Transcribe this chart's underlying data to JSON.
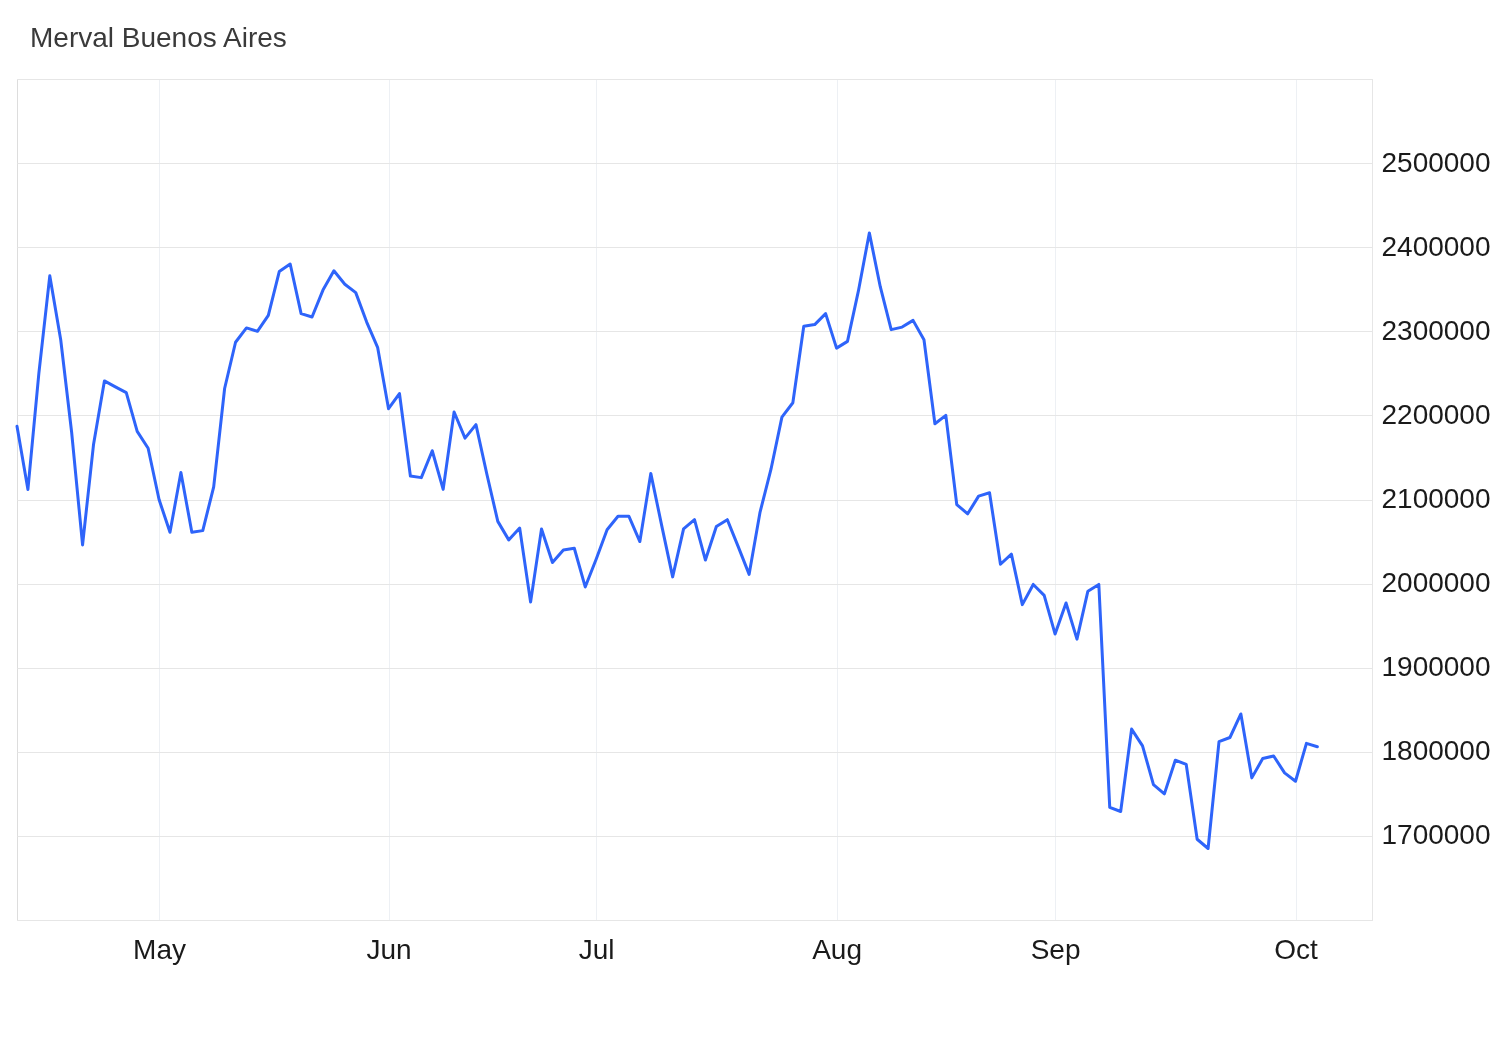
{
  "chart_data": {
    "type": "line",
    "title": "Merval Buenos Aires",
    "categories": [
      null,
      null,
      null,
      null,
      null,
      null,
      null,
      null,
      null,
      null,
      null,
      null,
      null,
      "May",
      null,
      null,
      null,
      null,
      null,
      null,
      null,
      null,
      null,
      null,
      null,
      null,
      null,
      null,
      null,
      null,
      null,
      null,
      null,
      null,
      "Jun",
      null,
      null,
      null,
      null,
      null,
      null,
      null,
      null,
      null,
      null,
      null,
      null,
      null,
      null,
      null,
      null,
      null,
      null,
      "Jul",
      null,
      null,
      null,
      null,
      null,
      null,
      null,
      null,
      null,
      null,
      null,
      null,
      null,
      null,
      null,
      null,
      null,
      null,
      null,
      null,
      null,
      "Aug",
      null,
      null,
      null,
      null,
      null,
      null,
      null,
      null,
      null,
      null,
      null,
      null,
      null,
      null,
      null,
      null,
      null,
      null,
      null,
      "Sep",
      null,
      null,
      null,
      null,
      null,
      null,
      null,
      null,
      null,
      null,
      null,
      null,
      null,
      null,
      null,
      null,
      null,
      null,
      null,
      null,
      null,
      "Oct",
      null,
      null
    ],
    "series": [
      {
        "color": "#2e64fa",
        "values": [
          2187000,
          2112000,
          2250000,
          2366000,
          2290000,
          2180000,
          2046000,
          2165000,
          2241000,
          2234000,
          2227000,
          2181000,
          2161000,
          2100000,
          2061000,
          2132000,
          2061000,
          2063000,
          2115000,
          2232000,
          2287000,
          2304000,
          2300000,
          2319000,
          2371000,
          2380000,
          2321000,
          2317000,
          2349000,
          2372000,
          2356000,
          2346000,
          2311000,
          2281000,
          2208000,
          2226000,
          2128000,
          2126000,
          2158000,
          2112000,
          2204000,
          2173000,
          2189000,
          2130000,
          2074000,
          2052000,
          2066000,
          1978000,
          2065000,
          2025000,
          2040000,
          2042000,
          1996000,
          2029000,
          2064000,
          2080000,
          2080000,
          2050000,
          2131000,
          2069000,
          2008000,
          2065000,
          2076000,
          2028000,
          2068000,
          2076000,
          2044000,
          2011000,
          2085000,
          2136000,
          2198000,
          2215000,
          2306000,
          2308000,
          2321000,
          2280000,
          2288000,
          2348000,
          2417000,
          2353000,
          2302000,
          2305000,
          2313000,
          2290000,
          2190000,
          2200000,
          2094000,
          2083000,
          2104000,
          2108000,
          2023000,
          2035000,
          1975000,
          1999000,
          1986000,
          1940000,
          1977000,
          1934000,
          1991000,
          1999000,
          1734000,
          1729000,
          1827000,
          1807000,
          1761000,
          1750000,
          1790000,
          1785000,
          1696000,
          1685000,
          1812000,
          1817000,
          1845000,
          1769000,
          1792000,
          1795000,
          1775000,
          1765000,
          1810000,
          1806000
        ]
      }
    ],
    "ylim": [
      1600000,
      2600000
    ],
    "yticks": [
      {
        "value": 1600000,
        "label": null
      },
      1700000,
      1800000,
      1900000,
      2000000,
      2100000,
      2200000,
      2300000,
      2400000,
      2500000,
      {
        "value": 2600000,
        "label": null
      }
    ],
    "grid": true
  }
}
